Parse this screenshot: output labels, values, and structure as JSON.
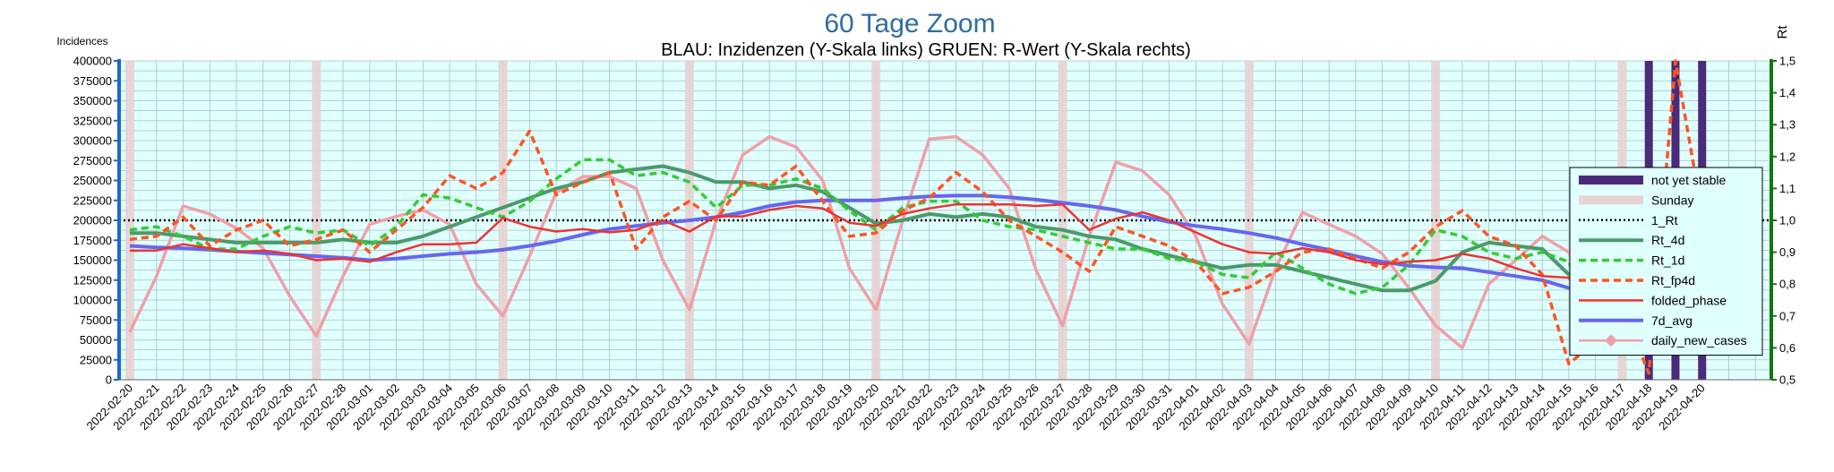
{
  "chart_data": {
    "type": "line",
    "title": "60 Tage Zoom",
    "subtitle": "BLAU: Inzidenzen (Y-Skala links)     GRUEN: R-Wert (Y-Skala rechts)",
    "ylabel": "Incidences",
    "y2label": "Rt",
    "ylim": [
      0,
      400000
    ],
    "y2lim": [
      0.5,
      1.5
    ],
    "yticks": [
      "0",
      "25000",
      "50000",
      "75000",
      "100000",
      "125000",
      "150000",
      "175000",
      "200000",
      "225000",
      "250000",
      "275000",
      "300000",
      "325000",
      "350000",
      "375000",
      "400000"
    ],
    "y2ticks": [
      "0,5",
      "0,6",
      "0,7",
      "0,8",
      "0,9",
      "1,0",
      "1,1",
      "1,2",
      "1,3",
      "1,4",
      "1,5"
    ],
    "grid": true,
    "legend_position": "right",
    "categories": [
      "2022-02-20",
      "2022-02-21",
      "2022-02-22",
      "2022-02-23",
      "2022-02-24",
      "2022-02-25",
      "2022-02-26",
      "2022-02-27",
      "2022-02-28",
      "2022-03-01",
      "2022-03-02",
      "2022-03-03",
      "2022-03-04",
      "2022-03-05",
      "2022-03-06",
      "2022-03-07",
      "2022-03-08",
      "2022-03-09",
      "2022-03-10",
      "2022-03-11",
      "2022-03-12",
      "2022-03-13",
      "2022-03-14",
      "2022-03-15",
      "2022-03-16",
      "2022-03-17",
      "2022-03-18",
      "2022-03-19",
      "2022-03-20",
      "2022-03-21",
      "2022-03-22",
      "2022-03-23",
      "2022-03-24",
      "2022-03-25",
      "2022-03-26",
      "2022-03-27",
      "2022-03-28",
      "2022-03-29",
      "2022-03-30",
      "2022-03-31",
      "2022-04-01",
      "2022-04-02",
      "2022-04-03",
      "2022-04-04",
      "2022-04-05",
      "2022-04-06",
      "2022-04-07",
      "2022-04-08",
      "2022-04-09",
      "2022-04-10",
      "2022-04-11",
      "2022-04-12",
      "2022-04-13",
      "2022-04-14",
      "2022-04-15",
      "2022-04-16",
      "2022-04-17",
      "2022-04-18",
      "2022-04-19",
      "2022-04-20"
    ],
    "sundays": [
      "2022-02-20",
      "2022-02-27",
      "2022-03-06",
      "2022-03-13",
      "2022-03-20",
      "2022-03-27",
      "2022-04-03",
      "2022-04-10",
      "2022-04-17"
    ],
    "not_yet_stable": [
      "2022-04-18",
      "2022-04-19",
      "2022-04-20"
    ],
    "reference_line": {
      "name": "1_Rt",
      "value": 1.0
    },
    "colors": {
      "plot_bg": "#e0ffff",
      "grid": "#a3c2c2",
      "sunday": "#e8d2d2",
      "not_yet_stable": "#4b2a7a",
      "left_axis": "#2266cc",
      "right_axis": "#117711",
      "title": "#2f6da3",
      "rt_4d": "#4a9a6a",
      "rt_1d": "#33cc33",
      "rt_fp4d": "#ff5522",
      "folded_phase": "#ee3333",
      "avg7d": "#6666ee",
      "daily": "#f0a0a8",
      "ref": "#000000"
    },
    "series": [
      {
        "name": "daily_new_cases",
        "axis": "left",
        "values": [
          60000,
          130000,
          218000,
          208000,
          190000,
          165000,
          105000,
          55000,
          130000,
          195000,
          205000,
          213000,
          195000,
          120000,
          80000,
          155000,
          235000,
          255000,
          255000,
          240000,
          150000,
          88000,
          200000,
          282000,
          305000,
          292000,
          250000,
          140000,
          88000,
          200000,
          302000,
          305000,
          282000,
          240000,
          138000,
          68000,
          180000,
          273000,
          262000,
          232000,
          180000,
          95000,
          45000,
          140000,
          210000,
          195000,
          180000,
          158000,
          115000,
          68000,
          40000,
          120000,
          150000,
          180000,
          160000,
          60000,
          53000,
          38000,
          35000,
          150000
        ]
      },
      {
        "name": "7d_avg",
        "axis": "left",
        "values": [
          168000,
          166000,
          165000,
          163000,
          161000,
          159000,
          157000,
          155000,
          153000,
          150000,
          152000,
          155000,
          158000,
          160000,
          163000,
          168000,
          174000,
          182000,
          189000,
          193000,
          197000,
          200000,
          204000,
          210000,
          218000,
          223000,
          225000,
          225000,
          225000,
          228000,
          230000,
          231000,
          231000,
          229000,
          226000,
          222000,
          218000,
          213000,
          205000,
          198000,
          193000,
          189000,
          184000,
          178000,
          170000,
          163000,
          155000,
          148000,
          143000,
          141000,
          140000,
          135000,
          130000,
          125000,
          115000,
          112000,
          108000,
          95000,
          92000,
          88000
        ]
      },
      {
        "name": "folded_phase",
        "axis": "left",
        "values": [
          162000,
          162000,
          170000,
          165000,
          160000,
          162000,
          158000,
          150000,
          152000,
          148000,
          160000,
          170000,
          170000,
          172000,
          203000,
          192000,
          186000,
          189000,
          185000,
          188000,
          200000,
          186000,
          205000,
          205000,
          213000,
          218000,
          215000,
          197000,
          193000,
          208000,
          215000,
          220000,
          220000,
          220000,
          218000,
          220000,
          188000,
          202000,
          210000,
          200000,
          185000,
          170000,
          160000,
          158000,
          165000,
          160000,
          150000,
          145000,
          148000,
          150000,
          158000,
          152000,
          140000,
          130000,
          128000,
          68000,
          100000,
          106000,
          38000,
          105000
        ]
      },
      {
        "name": "Rt_4d",
        "axis": "right",
        "values": [
          0.96,
          0.96,
          0.95,
          0.94,
          0.93,
          0.93,
          0.93,
          0.93,
          0.94,
          0.93,
          0.93,
          0.95,
          0.98,
          1.01,
          1.04,
          1.07,
          1.1,
          1.12,
          1.15,
          1.16,
          1.17,
          1.15,
          1.12,
          1.12,
          1.1,
          1.11,
          1.09,
          1.04,
          0.99,
          1.0,
          1.02,
          1.01,
          1.02,
          1.01,
          0.98,
          0.97,
          0.95,
          0.94,
          0.91,
          0.89,
          0.87,
          0.85,
          0.86,
          0.86,
          0.84,
          0.82,
          0.8,
          0.78,
          0.78,
          0.81,
          0.9,
          0.93,
          0.92,
          0.91,
          0.83,
          0.83,
          0.85,
          0.75,
          0.79,
          0.77
        ]
      },
      {
        "name": "Rt_1d",
        "axis": "right",
        "values": [
          0.97,
          0.98,
          0.95,
          0.91,
          0.91,
          0.95,
          0.98,
          0.96,
          0.97,
          0.92,
          0.98,
          1.08,
          1.07,
          1.04,
          1.01,
          1.06,
          1.13,
          1.19,
          1.19,
          1.14,
          1.15,
          1.12,
          1.04,
          1.11,
          1.11,
          1.13,
          1.1,
          1.03,
          0.97,
          1.04,
          1.06,
          1.06,
          1.0,
          0.98,
          0.97,
          0.95,
          0.93,
          0.91,
          0.91,
          0.88,
          0.87,
          0.83,
          0.82,
          0.9,
          0.85,
          0.8,
          0.77,
          0.79,
          0.86,
          0.97,
          0.95,
          0.9,
          0.88,
          0.9,
          0.87,
          0.65,
          0.88,
          0.85,
          0.78,
          0.81
        ]
      },
      {
        "name": "Rt_fp4d",
        "axis": "right",
        "values": [
          0.94,
          0.95,
          1.01,
          0.92,
          0.97,
          1.0,
          0.92,
          0.94,
          0.97,
          0.9,
          0.97,
          1.04,
          1.14,
          1.1,
          1.15,
          1.28,
          1.08,
          1.12,
          1.15,
          0.91,
          1.01,
          1.06,
          1.0,
          1.12,
          1.11,
          1.17,
          1.06,
          0.95,
          0.96,
          1.03,
          1.07,
          1.15,
          1.09,
          1.0,
          0.95,
          0.9,
          0.84,
          0.98,
          0.95,
          0.92,
          0.87,
          0.77,
          0.79,
          0.84,
          0.9,
          0.91,
          0.88,
          0.85,
          0.9,
          0.98,
          1.03,
          0.95,
          0.92,
          0.83,
          0.55,
          0.62,
          0.73,
          0.52,
          1.5,
          1.02
        ]
      }
    ],
    "legend": [
      {
        "label": "not yet stable",
        "kind": "thick",
        "color": "#4b2a7a"
      },
      {
        "label": "Sunday",
        "kind": "thick",
        "color": "#e8d2d2"
      },
      {
        "label": "1_Rt",
        "kind": "dotted",
        "color": "#000000"
      },
      {
        "label": "Rt_4d",
        "kind": "solid-thick",
        "color": "#4a9a6a"
      },
      {
        "label": "Rt_1d",
        "kind": "dashed",
        "color": "#33cc33"
      },
      {
        "label": "Rt_fp4d",
        "kind": "dashed",
        "color": "#ff5522"
      },
      {
        "label": "folded_phase",
        "kind": "solid",
        "color": "#ee3333"
      },
      {
        "label": "7d_avg",
        "kind": "solid-thick",
        "color": "#6666ee"
      },
      {
        "label": "daily_new_cases",
        "kind": "marker",
        "color": "#f0a0a8"
      }
    ]
  }
}
